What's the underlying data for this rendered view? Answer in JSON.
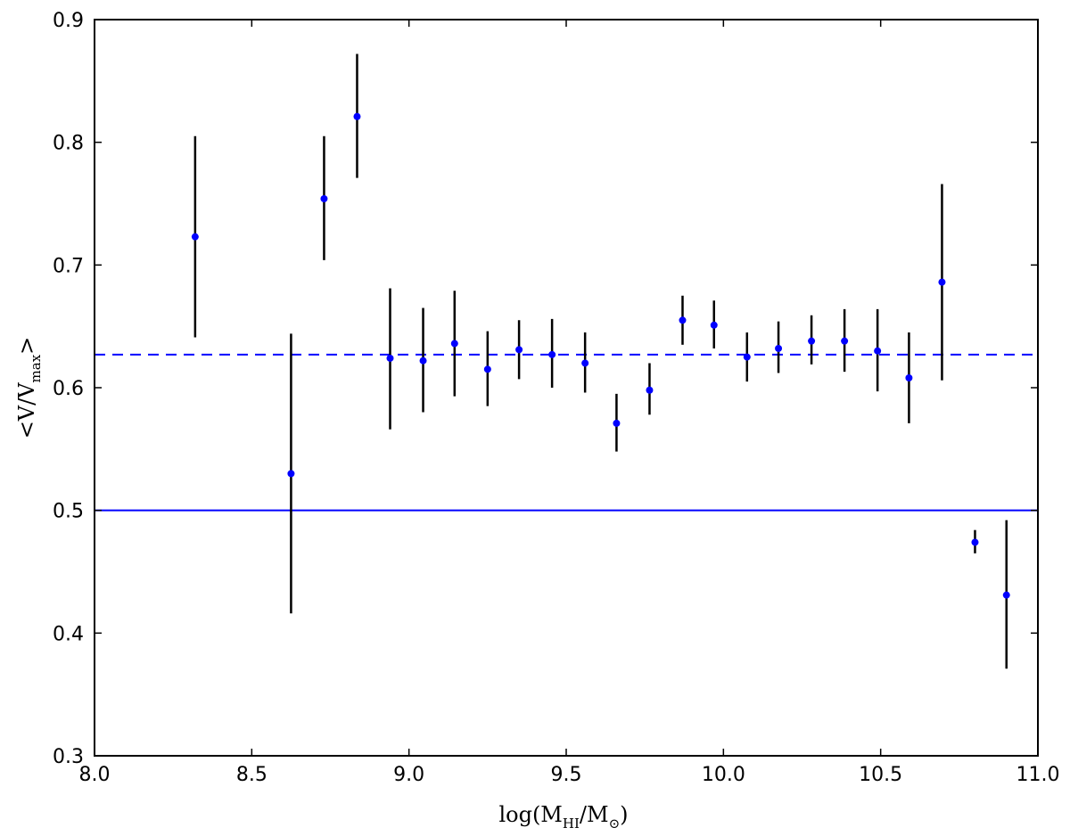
{
  "chart_data": {
    "type": "scatter",
    "title": "",
    "xlabel": {
      "prefix": "log(M",
      "sub1": "HI",
      "middle": "/M",
      "sub2": "⊙",
      "suffix": ")"
    },
    "ylabel": {
      "prefix": "<V/V",
      "sub": "max",
      "suffix": ">"
    },
    "xlim": [
      8.0,
      11.0
    ],
    "ylim": [
      0.3,
      0.9
    ],
    "xticks": [
      "8.0",
      "8.5",
      "9.0",
      "9.5",
      "10.0",
      "10.5",
      "11.0"
    ],
    "yticks": [
      "0.3",
      "0.4",
      "0.5",
      "0.6",
      "0.7",
      "0.8",
      "0.9"
    ],
    "grid": false,
    "marker_color": "#0000ff",
    "errorbar_color": "#000000",
    "reference_lines": [
      {
        "y": 0.627,
        "style": "dashed",
        "color": "#0000ff"
      },
      {
        "y": 0.5,
        "style": "solid",
        "color": "#0000ff"
      }
    ],
    "points": [
      {
        "x": 8.32,
        "y": 0.723,
        "lo": 0.641,
        "hi": 0.805
      },
      {
        "x": 8.625,
        "y": 0.53,
        "lo": 0.416,
        "hi": 0.644
      },
      {
        "x": 8.73,
        "y": 0.754,
        "lo": 0.704,
        "hi": 0.805
      },
      {
        "x": 8.835,
        "y": 0.821,
        "lo": 0.771,
        "hi": 0.872
      },
      {
        "x": 8.94,
        "y": 0.624,
        "lo": 0.566,
        "hi": 0.681
      },
      {
        "x": 9.045,
        "y": 0.622,
        "lo": 0.58,
        "hi": 0.665
      },
      {
        "x": 9.145,
        "y": 0.636,
        "lo": 0.593,
        "hi": 0.679
      },
      {
        "x": 9.25,
        "y": 0.615,
        "lo": 0.585,
        "hi": 0.646
      },
      {
        "x": 9.35,
        "y": 0.631,
        "lo": 0.607,
        "hi": 0.655
      },
      {
        "x": 9.455,
        "y": 0.627,
        "lo": 0.6,
        "hi": 0.656
      },
      {
        "x": 9.56,
        "y": 0.62,
        "lo": 0.596,
        "hi": 0.645
      },
      {
        "x": 9.66,
        "y": 0.571,
        "lo": 0.548,
        "hi": 0.595
      },
      {
        "x": 9.765,
        "y": 0.598,
        "lo": 0.578,
        "hi": 0.62
      },
      {
        "x": 9.87,
        "y": 0.655,
        "lo": 0.635,
        "hi": 0.675
      },
      {
        "x": 9.97,
        "y": 0.651,
        "lo": 0.632,
        "hi": 0.671
      },
      {
        "x": 10.075,
        "y": 0.625,
        "lo": 0.605,
        "hi": 0.645
      },
      {
        "x": 10.175,
        "y": 0.632,
        "lo": 0.612,
        "hi": 0.654
      },
      {
        "x": 10.28,
        "y": 0.638,
        "lo": 0.619,
        "hi": 0.659
      },
      {
        "x": 10.385,
        "y": 0.638,
        "lo": 0.613,
        "hi": 0.664
      },
      {
        "x": 10.49,
        "y": 0.63,
        "lo": 0.597,
        "hi": 0.664
      },
      {
        "x": 10.59,
        "y": 0.608,
        "lo": 0.571,
        "hi": 0.645
      },
      {
        "x": 10.695,
        "y": 0.686,
        "lo": 0.606,
        "hi": 0.766
      },
      {
        "x": 10.8,
        "y": 0.474,
        "lo": 0.465,
        "hi": 0.484
      },
      {
        "x": 10.9,
        "y": 0.431,
        "lo": 0.371,
        "hi": 0.492
      }
    ]
  }
}
